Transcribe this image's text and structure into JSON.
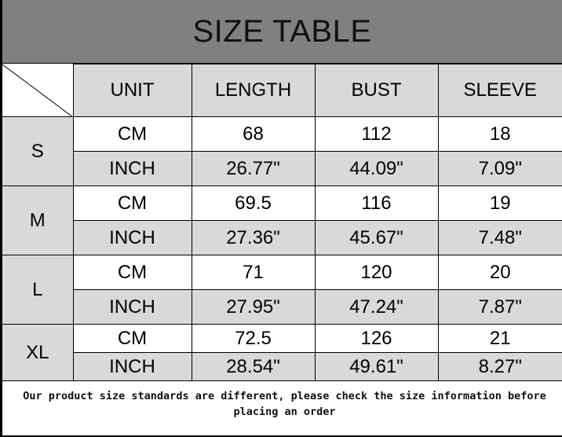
{
  "title": "SIZE TABLE",
  "headers": [
    "UNIT",
    "LENGTH",
    "BUST",
    "SLEEVE"
  ],
  "sizes": [
    {
      "size": "S",
      "rows": [
        {
          "unit": "CM",
          "length": "68",
          "bust": "112",
          "sleeve": "18"
        },
        {
          "unit": "INCH",
          "length": "26.77\"",
          "bust": "44.09\"",
          "sleeve": "7.09\""
        }
      ]
    },
    {
      "size": "M",
      "rows": [
        {
          "unit": "CM",
          "length": "69.5",
          "bust": "116",
          "sleeve": "19"
        },
        {
          "unit": "INCH",
          "length": "27.36\"",
          "bust": "45.67\"",
          "sleeve": "7.48\""
        }
      ]
    },
    {
      "size": "L",
      "rows": [
        {
          "unit": "CM",
          "length": "71",
          "bust": "120",
          "sleeve": "20"
        },
        {
          "unit": "INCH",
          "length": "27.95\"",
          "bust": "47.24\"",
          "sleeve": "7.87\""
        }
      ]
    },
    {
      "size": "XL",
      "rows": [
        {
          "unit": "CM",
          "length": "72.5",
          "bust": "126",
          "sleeve": "21"
        },
        {
          "unit": "INCH",
          "length": "28.54\"",
          "bust": "49.61\"",
          "sleeve": "8.27\""
        }
      ]
    }
  ],
  "note": "Our product size standards are different, please check the size information before placing an order",
  "colors": {
    "title_bg": "#808080",
    "cell_gray": "#d9d9d9"
  }
}
